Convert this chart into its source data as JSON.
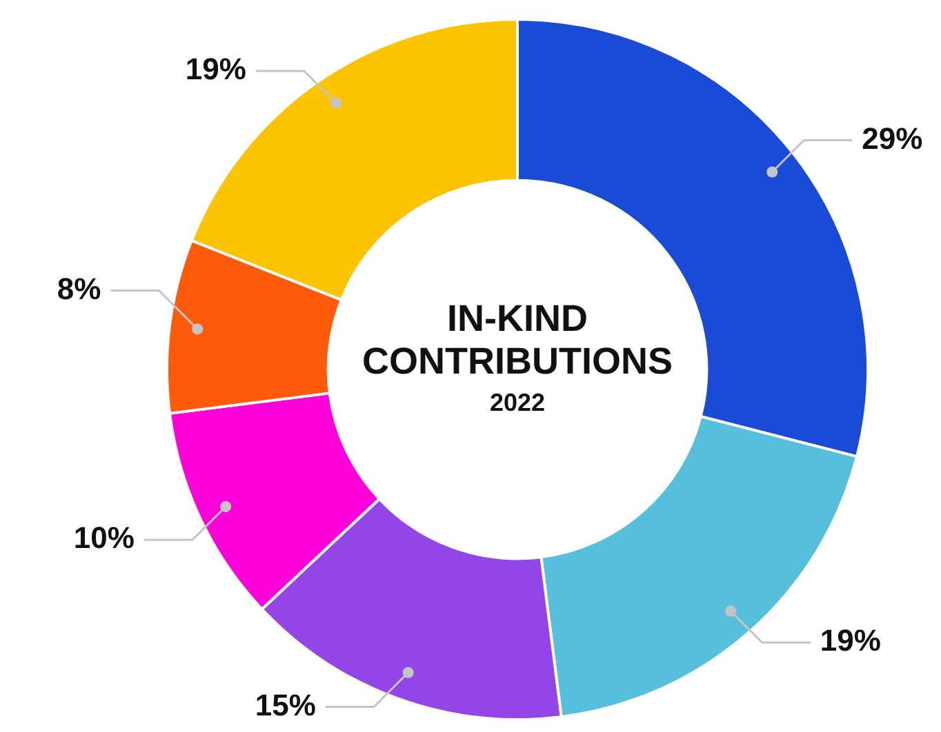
{
  "chart_data": {
    "type": "donut",
    "title": "IN-KIND CONTRIBUTIONS",
    "subtitle": "2022",
    "categories": [
      null,
      null,
      null,
      null,
      null,
      null
    ],
    "values": [
      29,
      19,
      15,
      10,
      8,
      19
    ],
    "colors": [
      "#1a4bd6",
      "#55bfdc",
      "#9445e8",
      "#ff00d8",
      "#ff5a0a",
      "#fcc400"
    ],
    "value_labels": [
      "29%",
      "19%",
      "15%",
      "10%",
      "8%",
      "19%"
    ]
  }
}
